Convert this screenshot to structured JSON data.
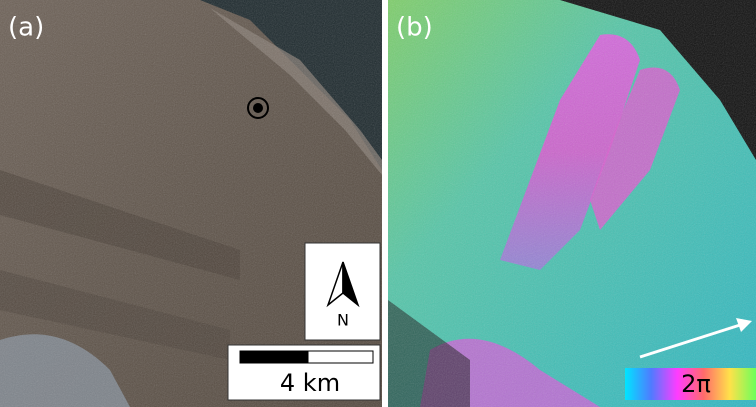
{
  "panels": [
    {
      "label": "(a)"
    },
    {
      "label": "(b)"
    }
  ],
  "north_arrow": {
    "label": "N"
  },
  "scale_bar": {
    "label": "4 km"
  },
  "color_bar": {
    "label": "2π"
  }
}
